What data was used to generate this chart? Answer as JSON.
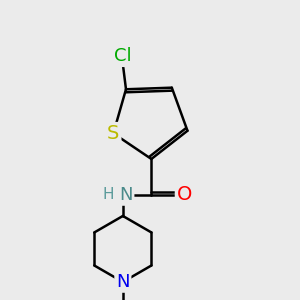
{
  "background_color": "#ebebeb",
  "atom_colors": {
    "C": "#000000",
    "H": "#5a9a9a",
    "N_amide": "#4a8a8a",
    "N_pip": "#0000ee",
    "O": "#ff0000",
    "S": "#bbbb00",
    "Cl": "#00aa00"
  },
  "bond_color": "#000000",
  "bond_width": 1.8,
  "font_size_atoms": 13,
  "font_size_H": 11
}
